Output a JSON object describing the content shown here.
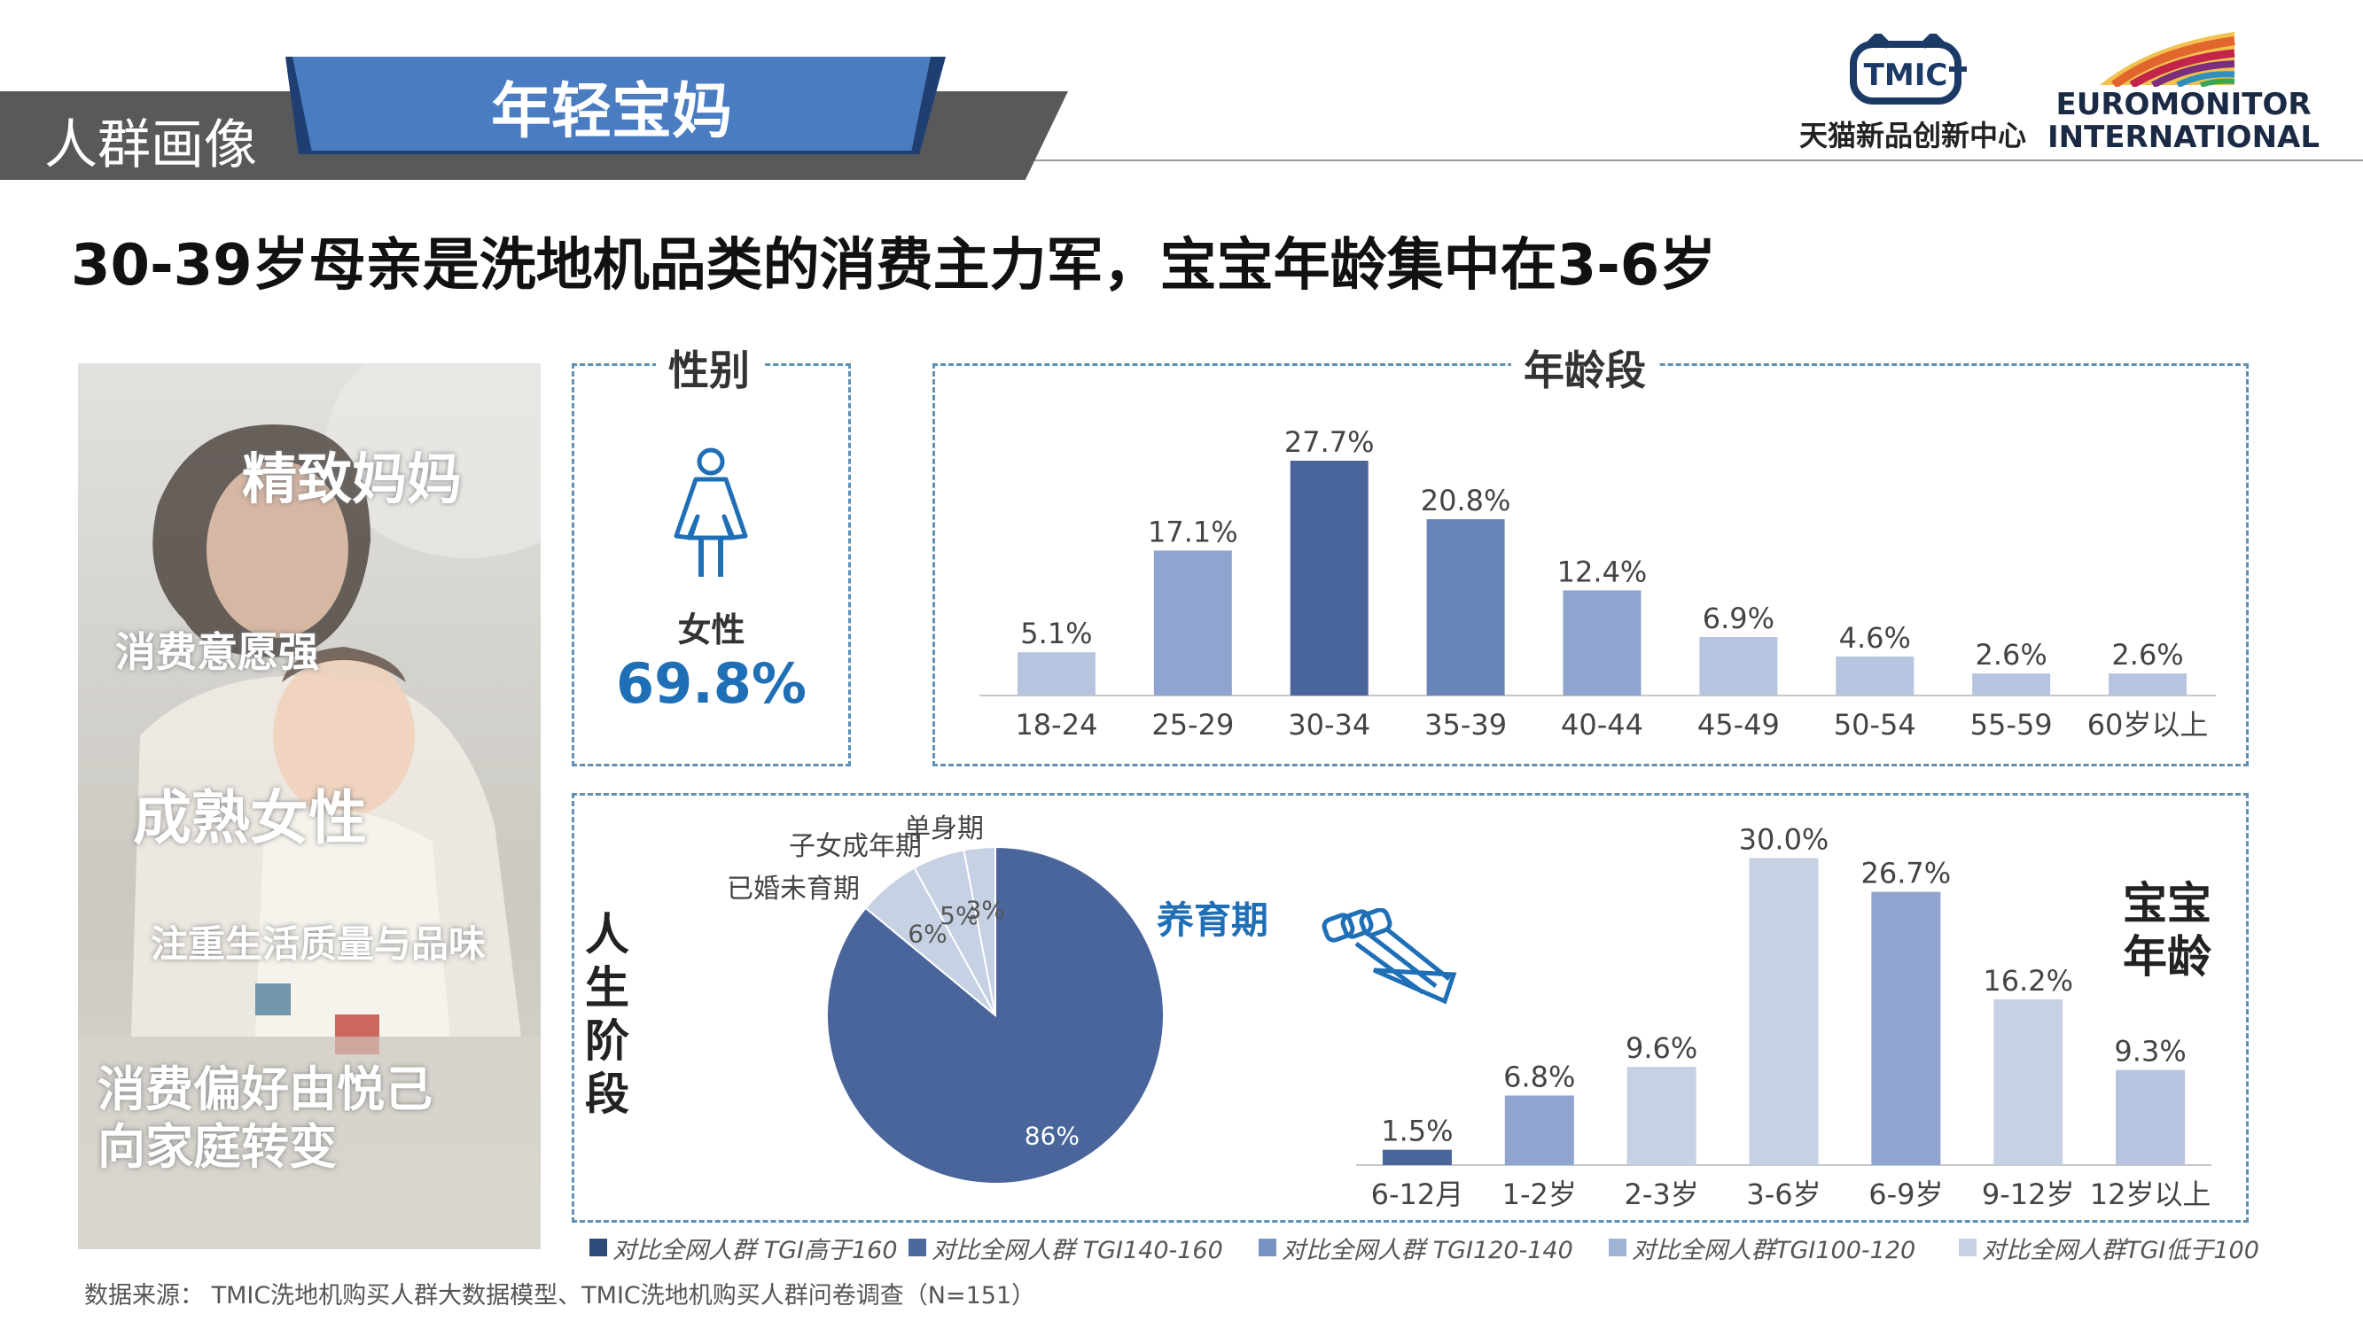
{
  "header": {
    "section_label": "人群画像",
    "segment_tag": "年轻宝妈",
    "logo_tmic": "TMIC",
    "logo_tmic_text": "天猫新品创新中心",
    "logo_euromonitor_line1": "EUROMONITOR",
    "logo_euromonitor_line2": "INTERNATIONAL"
  },
  "title": "30-39岁母亲是洗地机品类的消费主力军，宝宝年龄集中在3-6岁",
  "photo_tags": [
    "精致妈妈",
    "消费意愿强",
    "成熟女性",
    "注重生活质量与品味",
    "消费偏好由悦己",
    "向家庭转变"
  ],
  "gender": {
    "panel_title": "性别",
    "icon": "female-person-icon",
    "label": "女性",
    "value": "69.8%"
  },
  "panel_titles": {
    "age": "年龄段"
  },
  "life_stage_label": "人生阶段",
  "baby_age_label": "宝宝年龄",
  "chart_data": [
    {
      "type": "bar",
      "title": "年龄段",
      "categories": [
        "18-24",
        "25-29",
        "30-34",
        "35-39",
        "40-44",
        "45-49",
        "50-54",
        "55-59",
        "60岁以上"
      ],
      "values": [
        5.1,
        17.1,
        27.7,
        20.8,
        12.4,
        6.9,
        4.6,
        2.6,
        2.6
      ],
      "value_labels": [
        "5.1%",
        "17.1%",
        "27.7%",
        "20.8%",
        "12.4%",
        "6.9%",
        "4.6%",
        "2.6%",
        "2.6%"
      ],
      "tgi_levels": [
        4,
        3,
        1,
        2,
        3,
        4,
        4,
        4,
        4
      ],
      "ylim": [
        0,
        30
      ]
    },
    {
      "type": "pie",
      "title": "人生阶段",
      "slices": [
        {
          "label": "养育期",
          "value": 86,
          "value_label": "86%",
          "tgi_level": 2
        },
        {
          "label": "已婚未育期",
          "value": 6,
          "value_label": "6%",
          "tgi_level": 5
        },
        {
          "label": "子女成年期",
          "value": 5,
          "value_label": "5%",
          "tgi_level": 5
        },
        {
          "label": "单身期",
          "value": 3,
          "value_label": "3%",
          "tgi_level": 5
        }
      ]
    },
    {
      "type": "bar",
      "title": "宝宝年龄",
      "categories": [
        "6-12月",
        "1-2岁",
        "2-3岁",
        "3-6岁",
        "6-9岁",
        "9-12岁",
        "12岁以上"
      ],
      "values": [
        1.5,
        6.8,
        9.6,
        30.0,
        26.7,
        16.2,
        9.3
      ],
      "value_labels": [
        "1.5%",
        "6.8%",
        "9.6%",
        "30.0%",
        "26.7%",
        "16.2%",
        "9.3%"
      ],
      "tgi_levels": [
        1,
        3,
        5,
        5,
        3,
        5,
        4
      ],
      "ylim": [
        0,
        31
      ]
    }
  ],
  "legend": [
    {
      "label": "对比全网人群 TGI高于160",
      "color": "#2d4a78"
    },
    {
      "label": "对比全网人群 TGI140-160",
      "color": "#4b699b"
    },
    {
      "label": "对比全网人群 TGI120-140",
      "color": "#7893c2"
    },
    {
      "label": "对比全网人群TGI100-120",
      "color": "#a0b4d6"
    },
    {
      "label": "对比全网人群TGI低于100",
      "color": "#c6d1e4"
    }
  ],
  "colors": {
    "tgi_1": "#4a659b",
    "tgi_2": "#6884b8",
    "tgi_3": "#8fa5cf",
    "tgi_4": "#b6c4e0",
    "tgi_5": "#c6d1e4",
    "pie_main": "#4a659b",
    "pie_minor": "#c6d1e4",
    "accent_blue": "#1f6fb7",
    "dashed_border": "#5f8fb3"
  },
  "source": "数据来源： TMIC洗地机购买人群大数据模型、TMIC洗地机购买人群问卷调查（N=151）"
}
